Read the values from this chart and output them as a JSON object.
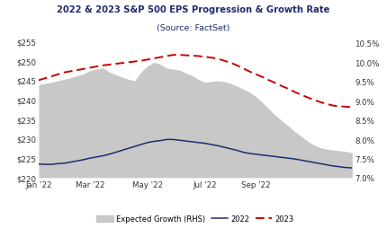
{
  "title_line1": "2022 & 2023 S&P 500 EPS Progression & Growth Rate",
  "title_line2": "(Source: FactSet)",
  "title_color": "#1f2d6e",
  "background_color": "#ffffff",
  "ylim_left": [
    220,
    257
  ],
  "ylim_right": [
    7.0,
    10.75
  ],
  "yticks_left": [
    220,
    225,
    230,
    235,
    240,
    245,
    250,
    255
  ],
  "yticks_right": [
    7.0,
    7.5,
    8.0,
    8.5,
    9.0,
    9.5,
    10.0,
    10.5
  ],
  "x_labels": [
    "Jan '22",
    "Mar '22",
    "May '22",
    "Jul '22",
    "Sep '22"
  ],
  "x_ticks": [
    0,
    8,
    17,
    26,
    34
  ],
  "eps2022": [
    223.5,
    223.4,
    223.4,
    223.6,
    223.7,
    224.0,
    224.3,
    224.6,
    225.0,
    225.3,
    225.6,
    226.0,
    226.5,
    227.0,
    227.5,
    228.0,
    228.5,
    229.0,
    229.3,
    229.5,
    229.8,
    229.8,
    229.6,
    229.4,
    229.2,
    229.0,
    228.8,
    228.5,
    228.2,
    227.8,
    227.4,
    227.0,
    226.5,
    226.2,
    226.0,
    225.8,
    225.6,
    225.4,
    225.2,
    225.0,
    224.8,
    224.5,
    224.2,
    223.9,
    223.6,
    223.3,
    223.0,
    222.8,
    222.6,
    222.5
  ],
  "eps2023": [
    245.0,
    245.5,
    246.0,
    246.5,
    247.0,
    247.3,
    247.6,
    247.9,
    248.2,
    248.5,
    248.8,
    249.0,
    249.2,
    249.4,
    249.6,
    249.8,
    250.0,
    250.3,
    250.6,
    250.9,
    251.2,
    251.5,
    251.5,
    251.4,
    251.3,
    251.2,
    251.0,
    250.8,
    250.5,
    250.0,
    249.5,
    248.8,
    248.0,
    247.2,
    246.5,
    245.8,
    245.0,
    244.3,
    243.5,
    242.8,
    242.0,
    241.3,
    240.6,
    240.0,
    239.4,
    238.9,
    238.5,
    238.3,
    238.2,
    238.1
  ],
  "growth_shade": [
    9.42,
    9.45,
    9.48,
    9.52,
    9.56,
    9.6,
    9.65,
    9.7,
    9.78,
    9.82,
    9.86,
    9.75,
    9.68,
    9.62,
    9.56,
    9.52,
    9.75,
    9.9,
    10.0,
    9.95,
    9.85,
    9.82,
    9.8,
    9.72,
    9.65,
    9.55,
    9.48,
    9.5,
    9.52,
    9.5,
    9.45,
    9.38,
    9.3,
    9.22,
    9.1,
    8.95,
    8.78,
    8.62,
    8.48,
    8.35,
    8.2,
    8.08,
    7.95,
    7.85,
    7.78,
    7.74,
    7.72,
    7.7,
    7.68,
    7.65
  ],
  "line2022_color": "#1f2d6e",
  "line2023_color": "#cc0000",
  "shade_color": "#c8c8c8",
  "legend_labels": [
    "Expected Growth (RHS)",
    "2022",
    "2023"
  ]
}
